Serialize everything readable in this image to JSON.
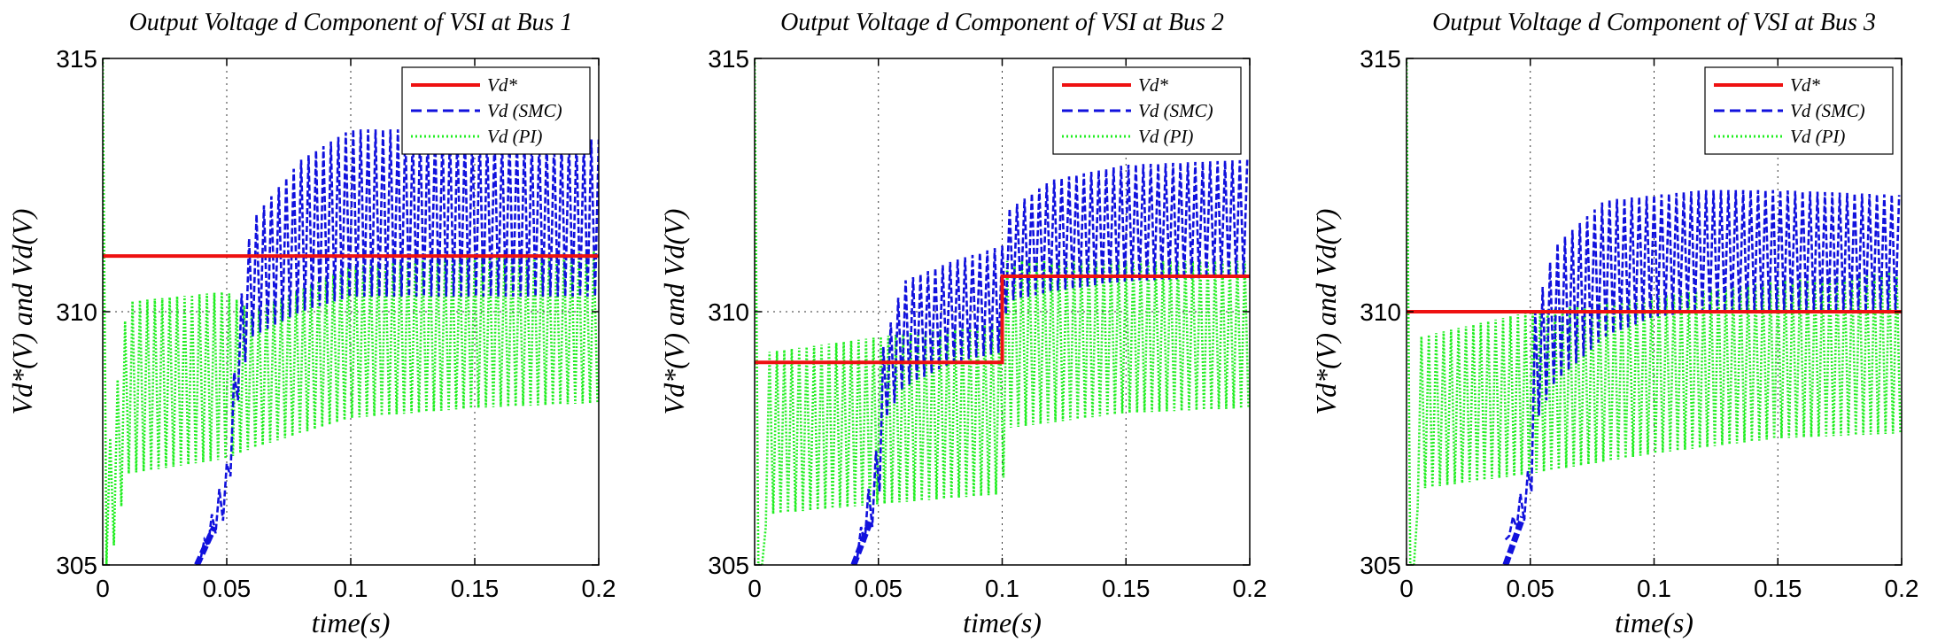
{
  "figure": {
    "background": "#ffffff",
    "colors": {
      "ref": "#ee1111",
      "smc": "#1111dd",
      "pi": "#22ee22"
    }
  },
  "chart_data": [
    {
      "type": "line",
      "title": "Output Voltage d Component of VSI at Bus 1",
      "xlabel": "time(s)",
      "ylabel": "Vd*(V) and Vd(V)",
      "xlim": [
        0,
        0.2
      ],
      "ylim": [
        305,
        315
      ],
      "xticks": [
        0,
        0.05,
        0.1,
        0.15,
        0.2
      ],
      "xtick_labels": [
        "0",
        "0.05",
        "0.1",
        "0.15",
        "0.2"
      ],
      "yticks": [
        305,
        310,
        315
      ],
      "ytick_labels": [
        "305",
        "310",
        "315"
      ],
      "grid": "dotted",
      "legend_position": "top-right",
      "series": [
        {
          "name": "Vd*",
          "style": "solid",
          "x": [
            0,
            0.2
          ],
          "values": [
            311.1,
            311.1
          ]
        },
        {
          "name": "Vd (SMC)",
          "style": "dashed",
          "envelope": {
            "x": [
              0.038,
              0.05,
              0.055,
              0.06,
              0.08,
              0.1,
              0.12,
              0.15,
              0.18,
              0.2
            ],
            "upper": [
              305.0,
              307.0,
              310.0,
              311.8,
              313.0,
              313.6,
              313.6,
              313.5,
              313.4,
              313.4
            ],
            "lower": [
              305.0,
              306.0,
              308.5,
              309.5,
              310.0,
              310.3,
              310.3,
              310.3,
              310.3,
              310.3
            ]
          }
        },
        {
          "name": "Vd (PI)",
          "style": "dotted",
          "envelope": {
            "x": [
              0,
              0.003,
              0.01,
              0.05,
              0.06,
              0.1,
              0.15,
              0.2
            ],
            "upper": [
              315.0,
              307.5,
              310.2,
              310.4,
              310.0,
              310.9,
              311.1,
              311.2
            ],
            "lower": [
              305.0,
              305.0,
              306.8,
              307.1,
              307.3,
              307.9,
              308.1,
              308.2
            ]
          }
        }
      ]
    },
    {
      "type": "line",
      "title": "Output Voltage d Component of VSI at Bus 2",
      "xlabel": "time(s)",
      "ylabel": "Vd*(V) and Vd(V)",
      "xlim": [
        0,
        0.2
      ],
      "ylim": [
        305,
        315
      ],
      "xticks": [
        0,
        0.05,
        0.1,
        0.15,
        0.2
      ],
      "xtick_labels": [
        "0",
        "0.05",
        "0.1",
        "0.15",
        "0.2"
      ],
      "yticks": [
        305,
        310,
        315
      ],
      "ytick_labels": [
        "305",
        "310",
        "315"
      ],
      "grid": "dotted",
      "legend_position": "top-right",
      "series": [
        {
          "name": "Vd*",
          "style": "solid",
          "x": [
            0,
            0.1,
            0.1,
            0.2
          ],
          "values": [
            309.0,
            309.0,
            310.7,
            310.7
          ]
        },
        {
          "name": "Vd (SMC)",
          "style": "dashed",
          "envelope": {
            "x": [
              0.04,
              0.05,
              0.052,
              0.06,
              0.08,
              0.1,
              0.102,
              0.12,
              0.15,
              0.2
            ],
            "upper": [
              305.0,
              307.5,
              309.3,
              310.6,
              311.0,
              311.3,
              312.0,
              312.6,
              312.9,
              313.0
            ],
            "lower": [
              305.0,
              306.0,
              307.8,
              308.5,
              309.0,
              309.2,
              310.2,
              310.4,
              310.6,
              310.7
            ]
          }
        },
        {
          "name": "Vd (PI)",
          "style": "dotted",
          "envelope": {
            "x": [
              0,
              0.003,
              0.005,
              0.05,
              0.1,
              0.102,
              0.15,
              0.2
            ],
            "upper": [
              315.0,
              305.0,
              309.2,
              309.5,
              309.8,
              311.0,
              311.0,
              311.0
            ],
            "lower": [
              305.0,
              305.0,
              306.0,
              306.2,
              306.4,
              307.7,
              308.0,
              308.1
            ]
          }
        }
      ]
    },
    {
      "type": "line",
      "title": "Output Voltage d Component of VSI at Bus 3",
      "xlabel": "time(s)",
      "ylabel": "Vd*(V) and Vd(V)",
      "xlim": [
        0,
        0.2
      ],
      "ylim": [
        305,
        315
      ],
      "xticks": [
        0,
        0.05,
        0.1,
        0.15,
        0.2
      ],
      "xtick_labels": [
        "0",
        "0.05",
        "0.1",
        "0.15",
        "0.2"
      ],
      "yticks": [
        305,
        310,
        315
      ],
      "ytick_labels": [
        "305",
        "310",
        "315"
      ],
      "grid": "dotted",
      "legend_position": "top-right",
      "series": [
        {
          "name": "Vd*",
          "style": "solid",
          "x": [
            0,
            0.2
          ],
          "values": [
            310.0,
            310.0
          ]
        },
        {
          "name": "Vd (SMC)",
          "style": "dashed",
          "envelope": {
            "x": [
              0.04,
              0.05,
              0.052,
              0.06,
              0.08,
              0.1,
              0.12,
              0.15,
              0.2
            ],
            "upper": [
              305.5,
              307.0,
              310.0,
              311.3,
              312.2,
              312.3,
              312.4,
              312.4,
              312.3
            ],
            "lower": [
              305.5,
              306.0,
              307.8,
              308.6,
              309.5,
              309.9,
              310.0,
              310.0,
              310.0
            ]
          }
        },
        {
          "name": "Vd (PI)",
          "style": "dotted",
          "envelope": {
            "x": [
              0,
              0.003,
              0.005,
              0.05,
              0.1,
              0.15,
              0.2
            ],
            "upper": [
              315.0,
              305.0,
              309.5,
              310.0,
              310.3,
              310.6,
              310.8
            ],
            "lower": [
              305.0,
              305.0,
              306.5,
              306.8,
              307.2,
              307.5,
              307.6
            ]
          }
        }
      ]
    }
  ]
}
